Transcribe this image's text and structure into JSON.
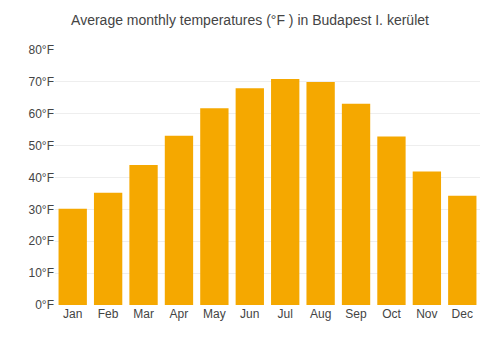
{
  "chart_data": {
    "type": "bar",
    "title": "Average monthly temperatures (°F ) in Budapest I. kerület",
    "categories": [
      "Jan",
      "Feb",
      "Mar",
      "Apr",
      "May",
      "Jun",
      "Jul",
      "Aug",
      "Sep",
      "Oct",
      "Nov",
      "Dec"
    ],
    "values": [
      30.2,
      35.2,
      43.9,
      53.1,
      61.7,
      68.0,
      70.9,
      70.0,
      63.1,
      52.9,
      41.9,
      34.3
    ],
    "color": "#F5A800",
    "ylim": [
      0,
      80
    ],
    "yticks": [
      {
        "value": 0,
        "label": "0°F"
      },
      {
        "value": 10,
        "label": "10°F"
      },
      {
        "value": 20,
        "label": "20°F"
      },
      {
        "value": 30,
        "label": "30°F"
      },
      {
        "value": 40,
        "label": "40°F"
      },
      {
        "value": 50,
        "label": "50°F"
      },
      {
        "value": 60,
        "label": "60°F"
      },
      {
        "value": 70,
        "label": "70°F"
      },
      {
        "value": 80,
        "label": "80°F"
      }
    ],
    "grid": true
  }
}
